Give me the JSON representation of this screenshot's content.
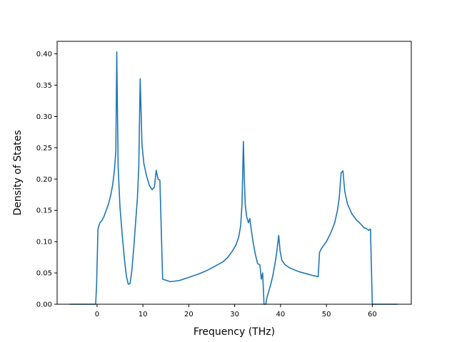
{
  "chart_data": {
    "type": "line",
    "title": "",
    "xlabel": "Frequency (THz)",
    "ylabel": "Density of States",
    "xlim": [
      -8.7,
      68.5
    ],
    "ylim": [
      0.0,
      0.42
    ],
    "x_ticks": [
      0,
      10,
      20,
      30,
      40,
      50,
      60
    ],
    "y_ticks": [
      0.0,
      0.05,
      0.1,
      0.15,
      0.2,
      0.25,
      0.3,
      0.35,
      0.4
    ],
    "x_tick_labels": [
      "0",
      "10",
      "20",
      "30",
      "40",
      "50",
      "60"
    ],
    "y_tick_labels": [
      "0.00",
      "0.05",
      "0.10",
      "0.15",
      "0.20",
      "0.25",
      "0.30",
      "0.35",
      "0.40"
    ],
    "grid": false,
    "legend": "none",
    "series": [
      {
        "color": "#1f77b4",
        "x": [
          -6.0,
          -0.3,
          -0.1,
          0.2,
          0.6,
          1.0,
          1.5,
          2.0,
          2.5,
          3.0,
          3.4,
          3.8,
          4.1,
          4.3,
          4.6,
          5.0,
          5.5,
          6.0,
          6.4,
          6.8,
          7.2,
          7.6,
          8.0,
          8.4,
          8.8,
          9.1,
          9.4,
          9.8,
          10.2,
          10.8,
          11.4,
          12.0,
          12.5,
          12.9,
          13.3,
          13.7,
          14.3,
          16.0,
          18.0,
          20.0,
          22.0,
          24.0,
          26.0,
          27.5,
          28.5,
          29.5,
          30.3,
          30.9,
          31.3,
          31.6,
          31.9,
          32.1,
          32.3,
          32.6,
          33.0,
          33.3,
          33.6,
          34.0,
          34.5,
          35.0,
          35.5,
          35.8,
          36.1,
          36.4,
          36.6,
          36.8,
          37.0,
          37.4,
          37.8,
          38.3,
          38.8,
          39.2,
          39.6,
          39.9,
          40.3,
          41.0,
          42.0,
          43.0,
          44.0,
          45.0,
          46.0,
          47.0,
          48.2,
          48.5,
          49.0,
          50.0,
          51.0,
          51.8,
          52.4,
          52.8,
          53.2,
          53.6,
          54.0,
          54.6,
          55.5,
          56.5,
          57.5,
          58.2,
          58.7,
          59.2,
          59.6,
          60.0,
          62.0,
          65.5
        ],
        "y": [
          0.0,
          0.0,
          0.03,
          0.12,
          0.13,
          0.133,
          0.14,
          0.15,
          0.16,
          0.175,
          0.19,
          0.215,
          0.245,
          0.403,
          0.22,
          0.155,
          0.11,
          0.07,
          0.045,
          0.032,
          0.033,
          0.055,
          0.09,
          0.13,
          0.17,
          0.22,
          0.36,
          0.255,
          0.225,
          0.205,
          0.19,
          0.183,
          0.187,
          0.214,
          0.2,
          0.198,
          0.04,
          0.036,
          0.038,
          0.043,
          0.048,
          0.054,
          0.062,
          0.068,
          0.075,
          0.085,
          0.095,
          0.108,
          0.125,
          0.16,
          0.26,
          0.2,
          0.16,
          0.14,
          0.13,
          0.137,
          0.12,
          0.1,
          0.08,
          0.065,
          0.063,
          0.04,
          0.05,
          0.0,
          0.0,
          0.0,
          0.01,
          0.02,
          0.03,
          0.045,
          0.065,
          0.085,
          0.11,
          0.085,
          0.07,
          0.063,
          0.058,
          0.055,
          0.052,
          0.05,
          0.048,
          0.046,
          0.044,
          0.083,
          0.09,
          0.1,
          0.115,
          0.13,
          0.15,
          0.17,
          0.21,
          0.213,
          0.18,
          0.16,
          0.145,
          0.135,
          0.128,
          0.122,
          0.121,
          0.118,
          0.12,
          0.0,
          0.0,
          0.0
        ]
      }
    ]
  }
}
